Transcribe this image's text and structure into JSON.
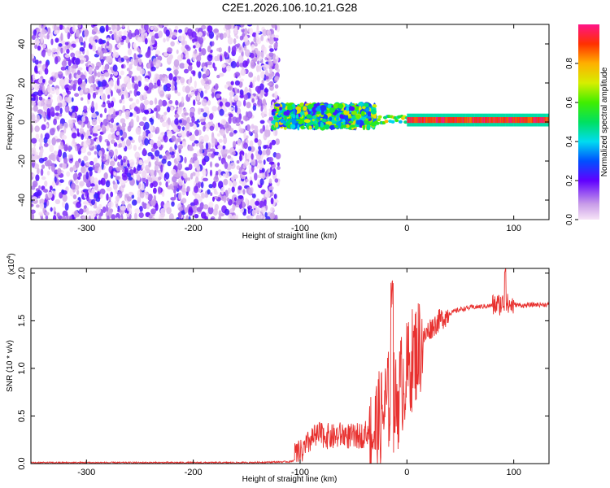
{
  "title": "C2E1.2026.106.10.21.G28",
  "chart_data": [
    {
      "type": "heatmap",
      "xlabel": "Height of straight line (km)",
      "ylabel": "Frequency (Hz)",
      "xlim": [
        -352,
        133
      ],
      "ylim": [
        -50,
        50
      ],
      "xticks": [
        -300,
        -200,
        -100,
        0,
        100
      ],
      "xtick_labels": [
        "-300",
        "-200",
        "-100",
        "0",
        "100"
      ],
      "yticks": [
        -40,
        -20,
        0,
        20,
        40
      ],
      "ytick_labels": [
        "-40",
        "-20",
        "0",
        "20",
        "40"
      ],
      "grid": false,
      "colorbar": {
        "label": "Normalized spectral amplitude",
        "range": [
          0,
          1
        ],
        "ticks": [
          0.0,
          0.2,
          0.4,
          0.6,
          0.8
        ],
        "tick_labels": [
          "0.0",
          "0.2",
          "0.4",
          "0.6",
          "0.8"
        ]
      },
      "regions": [
        {
          "description": "scattered low-amplitude noise",
          "x": [
            -352,
            -120
          ],
          "y": [
            -50,
            50
          ],
          "amplitude": [
            0.0,
            0.25
          ]
        },
        {
          "description": "broad signal band",
          "x": [
            -125,
            -30
          ],
          "y_center": 3,
          "y_halfwidth": 6,
          "amplitude": [
            0.2,
            0.75
          ]
        },
        {
          "description": "narrow carrier line",
          "x": [
            0,
            133
          ],
          "y_center": 1,
          "y_halfwidth": 1.5,
          "amplitude": [
            0.85,
            1.0
          ]
        }
      ]
    },
    {
      "type": "line",
      "xlabel": "Height of straight line (km)",
      "ylabel": "SNR (10 * v/v)",
      "yscale_label": "(x10",
      "yscale_exp": "4",
      "yscale_close": ")",
      "xlim": [
        -352,
        133
      ],
      "ylim": [
        0,
        2.05
      ],
      "xticks": [
        -300,
        -200,
        -100,
        0,
        100
      ],
      "xtick_labels": [
        "-300",
        "-200",
        "-100",
        "0",
        "100"
      ],
      "yticks": [
        0.0,
        0.5,
        1.0,
        1.5,
        2.0
      ],
      "ytick_labels": [
        "0.0",
        "0.5",
        "1.0",
        "1.5",
        "2.0"
      ],
      "grid": false,
      "series": [
        {
          "color": "#e8312f",
          "x": [
            -352,
            -300,
            -250,
            -200,
            -150,
            -110,
            -100,
            -95,
            -90,
            -80,
            -70,
            -60,
            -50,
            -40,
            -30,
            -25,
            -20,
            -15,
            -10,
            -5,
            0,
            5,
            10,
            15,
            20,
            30,
            40,
            50,
            60,
            70,
            80,
            85,
            90,
            92,
            95,
            100,
            110,
            120,
            133
          ],
          "y": [
            0.01,
            0.01,
            0.01,
            0.01,
            0.01,
            0.02,
            0.05,
            0.1,
            0.2,
            0.25,
            0.22,
            0.25,
            0.22,
            0.25,
            0.35,
            0.45,
            0.6,
            0.7,
            0.6,
            0.85,
            0.95,
            1.1,
            1.2,
            1.3,
            1.4,
            1.5,
            1.58,
            1.62,
            1.64,
            1.65,
            1.66,
            1.67,
            1.68,
            1.7,
            1.66,
            1.67,
            1.66,
            1.67,
            1.67
          ]
        }
      ]
    }
  ]
}
